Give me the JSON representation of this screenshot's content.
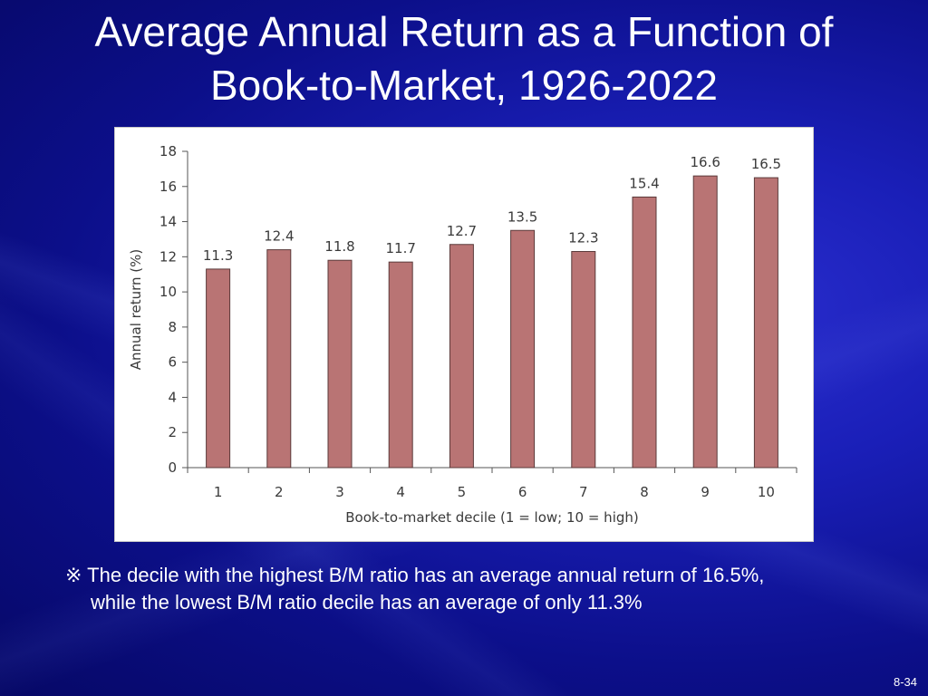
{
  "slide": {
    "title_line1": "Average Annual Return as a Function of",
    "title_line2": "Book-to-Market, 1926-2022",
    "note_line1": "※ The decile with the highest B/M ratio has an average annual return of 16.5%,",
    "note_line2": "while the lowest B/M ratio decile has an average of only 11.3%",
    "page_number": "8-34"
  },
  "chart_data": {
    "type": "bar",
    "categories": [
      "1",
      "2",
      "3",
      "4",
      "5",
      "6",
      "7",
      "8",
      "9",
      "10"
    ],
    "values": [
      11.3,
      12.4,
      11.8,
      11.7,
      12.7,
      13.5,
      12.3,
      15.4,
      16.6,
      16.5
    ],
    "value_labels": [
      "11.3",
      "12.4",
      "11.8",
      "11.7",
      "12.7",
      "13.5",
      "12.3",
      "15.4",
      "16.6",
      "16.5"
    ],
    "title": "",
    "xlabel": "Book-to-market decile (1 = low; 10 = high)",
    "ylabel": "Annual return (%)",
    "ylim": [
      0,
      18
    ],
    "yticks": [
      0,
      2,
      4,
      6,
      8,
      10,
      12,
      14,
      16,
      18
    ],
    "bar_color": "#b97474",
    "bar_edge_color": "#5a3a3a",
    "grid": false,
    "legend": "none"
  }
}
